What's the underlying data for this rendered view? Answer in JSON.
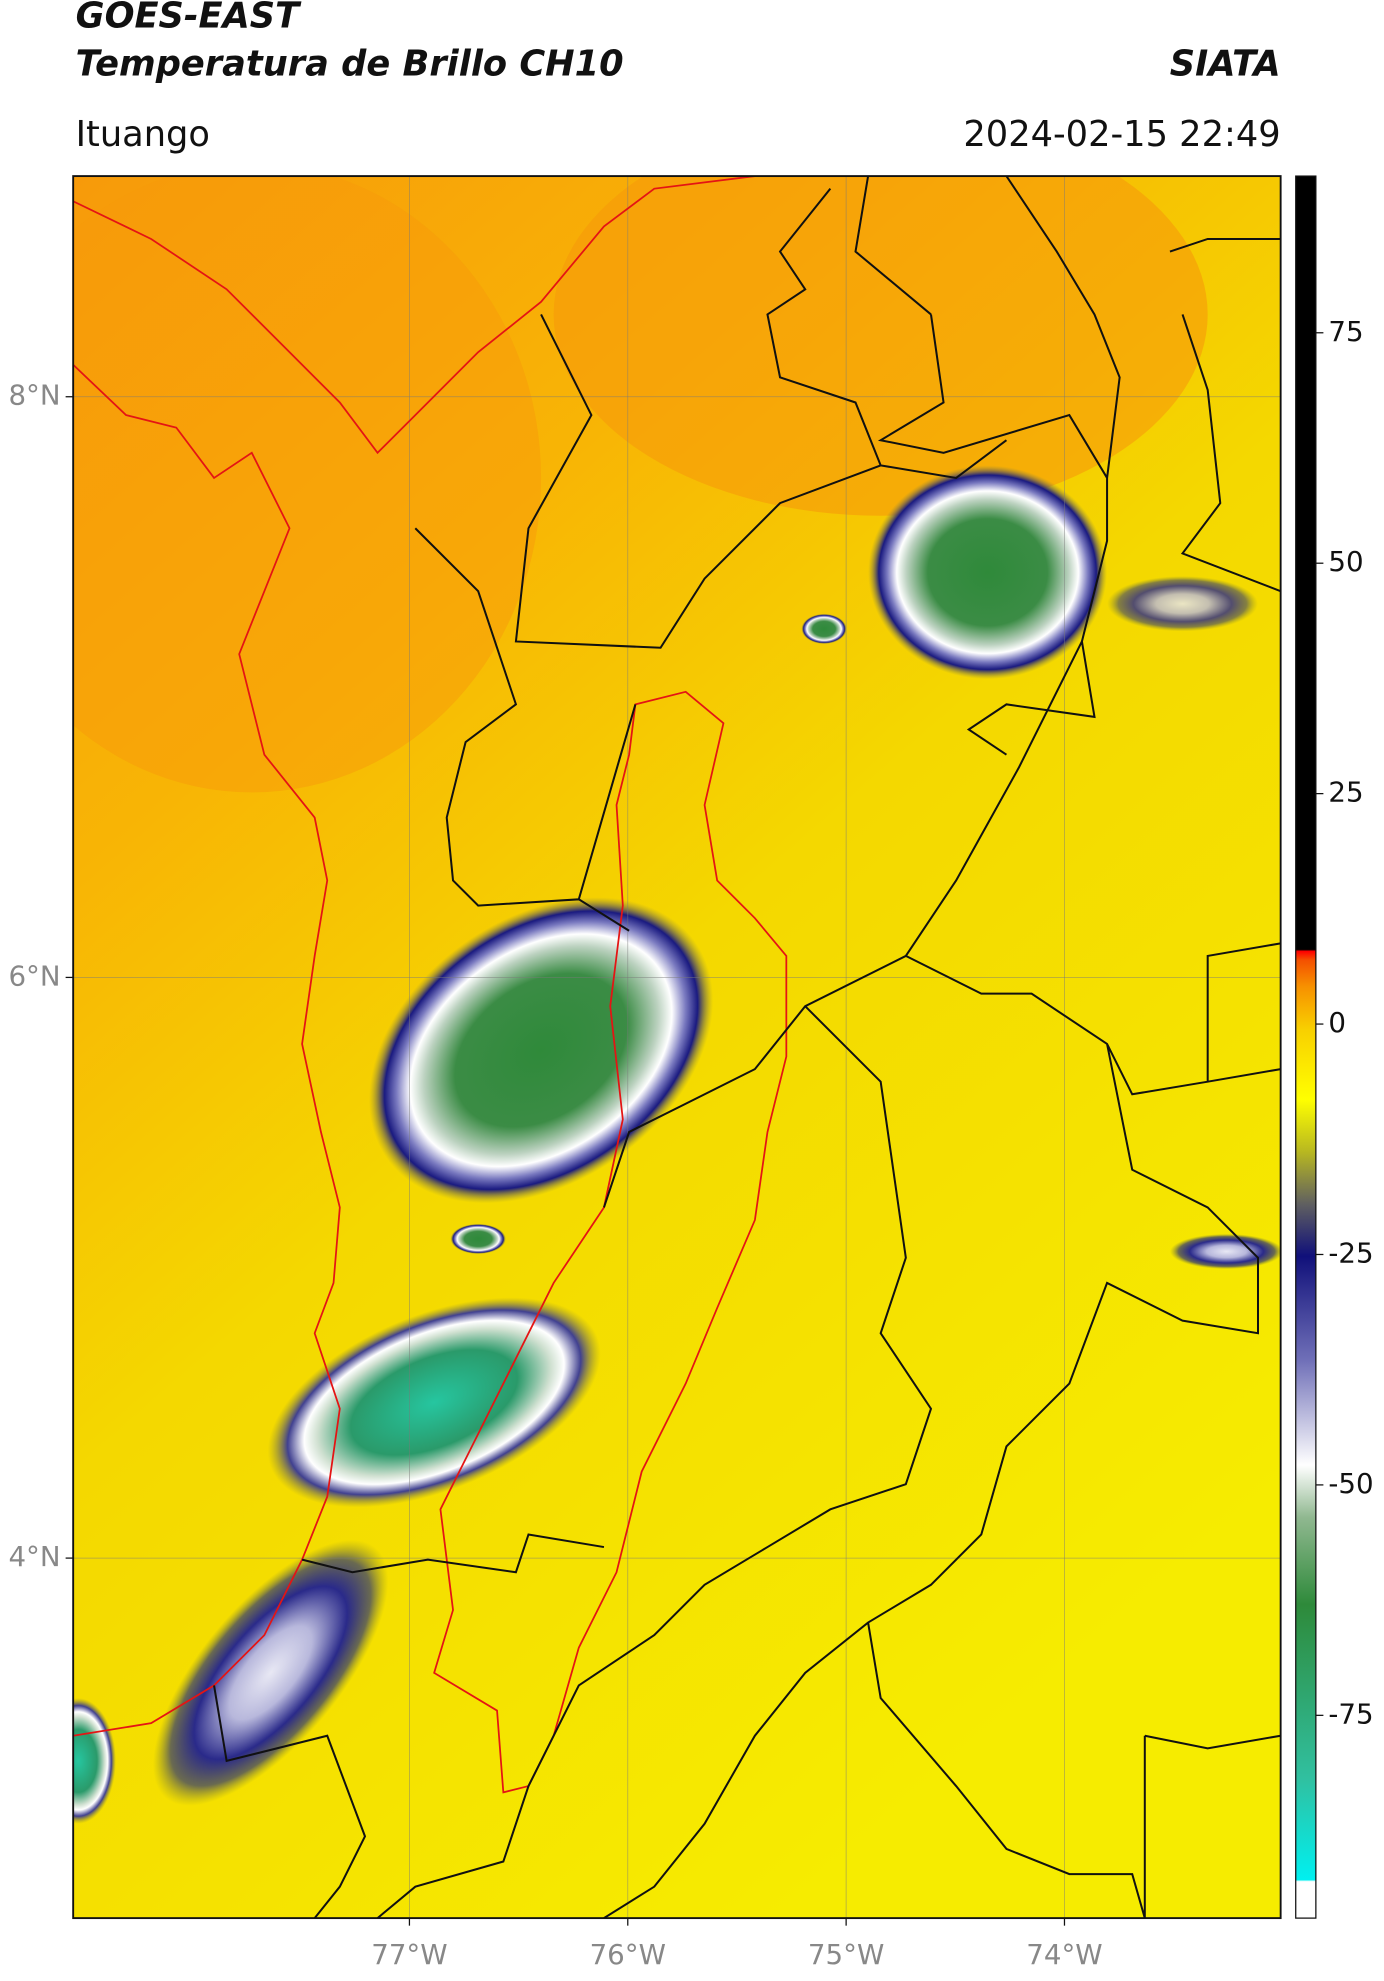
{
  "header": {
    "title": "GOES-EAST",
    "subtitle": "Temperatura de Brillo CH10",
    "source": "SIATA",
    "location": "Ituango",
    "datetime": "2024-02-15 22:49"
  },
  "map": {
    "xlim": [
      -78.54,
      -73.01
    ],
    "ylim": [
      2.76,
      8.76
    ],
    "xticks": [
      {
        "value": -77,
        "label": "77°W"
      },
      {
        "value": -76,
        "label": "76°W"
      },
      {
        "value": -75,
        "label": "75°W"
      },
      {
        "value": -74,
        "label": "74°W"
      }
    ],
    "yticks": [
      {
        "value": 8,
        "label": "8°N"
      },
      {
        "value": 6,
        "label": "6°N"
      },
      {
        "value": 4,
        "label": "4°N"
      }
    ],
    "grid": true
  },
  "colorbar": {
    "lim": [
      -97,
      92
    ],
    "ticks": [
      75,
      50,
      25,
      0,
      -25,
      -50,
      -75
    ]
  }
}
